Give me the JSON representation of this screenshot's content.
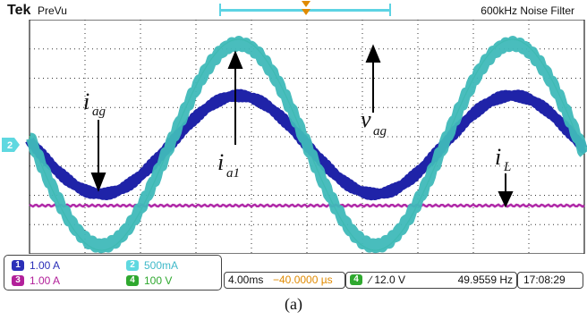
{
  "header": {
    "brand": "Tek",
    "mode": "PreVu",
    "filter": "600kHz  Noise Filter"
  },
  "waveform_labels": {
    "iag_main": "i",
    "iag_sub": "ag",
    "ia1_main": "i",
    "ia1_sub": "a1",
    "vag_main": "v",
    "vag_sub": "ag",
    "iL_main": "i",
    "iL_sub": "L"
  },
  "channel_marker": "2",
  "channels": [
    {
      "id": "1",
      "scale": "1.00 A",
      "color": "#2b2fb8"
    },
    {
      "id": "2",
      "scale": "500mA",
      "color": "#5fd8e0"
    },
    {
      "id": "3",
      "scale": "1.00 A",
      "color": "#b2209a"
    },
    {
      "id": "4",
      "scale": "100 V",
      "color": "#2fa82f"
    }
  ],
  "timebase": {
    "scale": "4.00ms",
    "position": "−40.0000 µs"
  },
  "trigger": {
    "channel": "4",
    "slope_level": "∕ 12.0 V",
    "frequency": "49.9559 Hz"
  },
  "clock": "17:08:29",
  "caption": "(a)",
  "colors": {
    "grid": "#333333",
    "vag": "#3cbf3c",
    "ia1": "#3fb9b9",
    "iag": "#1f23a8",
    "iL": "#b02aa8",
    "time_position": "#e08a00"
  }
}
